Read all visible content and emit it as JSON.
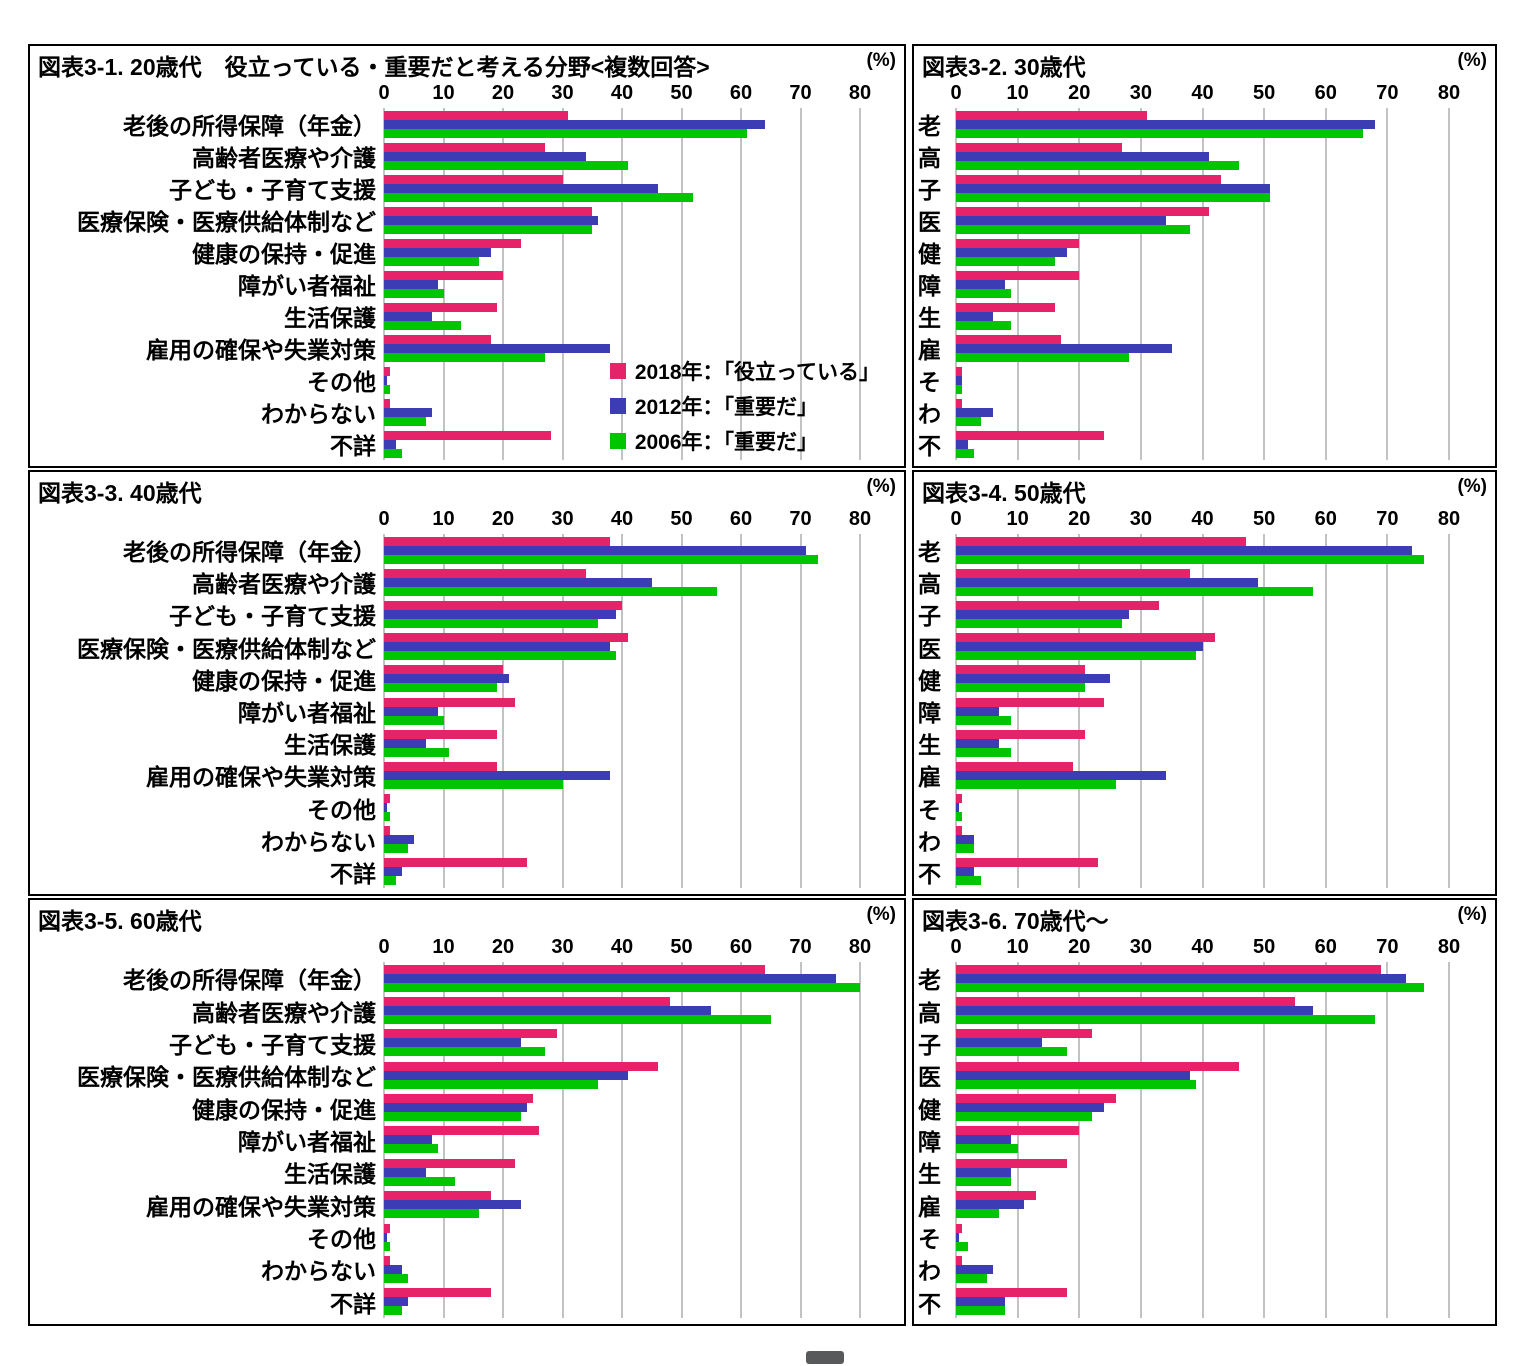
{
  "page": {
    "background": "#ffffff"
  },
  "axis": {
    "ticks": [
      0,
      10,
      20,
      30,
      40,
      50,
      60,
      70,
      80
    ],
    "max": 80,
    "unit_label": "(%)"
  },
  "series_meta": [
    {
      "year": "2018",
      "label": "2018年：「役立っている」",
      "color": "#e62368"
    },
    {
      "year": "2012",
      "label": "2012年：「重要だ」",
      "color": "#3c3cb4"
    },
    {
      "year": "2006",
      "label": "2006年：「重要だ」",
      "color": "#00c500"
    }
  ],
  "gridline_color": "#c3c3c3",
  "categories_full": [
    "老後の所得保障（年金）",
    "高齢者医療や介護",
    "子ども・子育て支援",
    "医療保険・医療供給体制など",
    "健康の保持・促進",
    "障がい者福祉",
    "生活保護",
    "雇用の確保や失業対策",
    "その他",
    "わからない",
    "不詳"
  ],
  "categories_short": [
    "老",
    "高",
    "子",
    "医",
    "健",
    "障",
    "生",
    "雇",
    "そ",
    "わ",
    "不"
  ],
  "chart_data": [
    {
      "type": "bar",
      "orientation": "horizontal",
      "xlim": [
        0,
        80
      ],
      "title": "図表3-1. 20歳代　役立っている・重要だと考える分野<複数回答>",
      "age_group": "20歳代",
      "categories": [
        "老後の所得保障（年金）",
        "高齢者医療や介護",
        "子ども・子育て支援",
        "医療保険・医療供給体制など",
        "健康の保持・促進",
        "障がい者福祉",
        "生活保護",
        "雇用の確保や失業対策",
        "その他",
        "わからない",
        "不詳"
      ],
      "series": [
        {
          "name": "2018年：「役立っている」",
          "values": [
            31,
            27,
            30,
            35,
            23,
            20,
            19,
            18,
            1,
            1,
            28
          ]
        },
        {
          "name": "2012年：「重要だ」",
          "values": [
            64,
            34,
            46,
            36,
            18,
            9,
            8,
            38,
            0.5,
            8,
            2
          ]
        },
        {
          "name": "2006年：「重要だ」",
          "values": [
            61,
            41,
            52,
            35,
            16,
            10,
            13,
            27,
            1,
            7,
            3
          ]
        }
      ]
    },
    {
      "type": "bar",
      "orientation": "horizontal",
      "xlim": [
        0,
        80
      ],
      "title": "図表3-2. 30歳代",
      "age_group": "30歳代",
      "categories": [
        "老",
        "高",
        "子",
        "医",
        "健",
        "障",
        "生",
        "雇",
        "そ",
        "わ",
        "不"
      ],
      "series": [
        {
          "name": "2018年：「役立っている」",
          "values": [
            31,
            27,
            43,
            41,
            20,
            20,
            16,
            17,
            1,
            1,
            24
          ]
        },
        {
          "name": "2012年：「重要だ」",
          "values": [
            68,
            41,
            51,
            34,
            18,
            8,
            6,
            35,
            1,
            6,
            2
          ]
        },
        {
          "name": "2006年：「重要だ」",
          "values": [
            66,
            46,
            51,
            38,
            16,
            9,
            9,
            28,
            1,
            4,
            3
          ]
        }
      ]
    },
    {
      "type": "bar",
      "orientation": "horizontal",
      "xlim": [
        0,
        80
      ],
      "title": "図表3-3. 40歳代",
      "age_group": "40歳代",
      "categories": [
        "老後の所得保障（年金）",
        "高齢者医療や介護",
        "子ども・子育て支援",
        "医療保険・医療供給体制など",
        "健康の保持・促進",
        "障がい者福祉",
        "生活保護",
        "雇用の確保や失業対策",
        "その他",
        "わからない",
        "不詳"
      ],
      "series": [
        {
          "name": "2018年：「役立っている」",
          "values": [
            38,
            34,
            40,
            41,
            20,
            22,
            19,
            19,
            1,
            1,
            24
          ]
        },
        {
          "name": "2012年：「重要だ」",
          "values": [
            71,
            45,
            39,
            38,
            21,
            9,
            7,
            38,
            0.5,
            5,
            3
          ]
        },
        {
          "name": "2006年：「重要だ」",
          "values": [
            73,
            56,
            36,
            39,
            19,
            10,
            11,
            30,
            1,
            4,
            2
          ]
        }
      ]
    },
    {
      "type": "bar",
      "orientation": "horizontal",
      "xlim": [
        0,
        80
      ],
      "title": "図表3-4. 50歳代",
      "age_group": "50歳代",
      "categories": [
        "老",
        "高",
        "子",
        "医",
        "健",
        "障",
        "生",
        "雇",
        "そ",
        "わ",
        "不"
      ],
      "series": [
        {
          "name": "2018年：「役立っている」",
          "values": [
            47,
            38,
            33,
            42,
            21,
            24,
            21,
            19,
            1,
            1,
            23
          ]
        },
        {
          "name": "2012年：「重要だ」",
          "values": [
            74,
            49,
            28,
            40,
            25,
            7,
            7,
            34,
            0.5,
            3,
            3
          ]
        },
        {
          "name": "2006年：「重要だ」",
          "values": [
            76,
            58,
            27,
            39,
            21,
            9,
            9,
            26,
            1,
            3,
            4
          ]
        }
      ]
    },
    {
      "type": "bar",
      "orientation": "horizontal",
      "xlim": [
        0,
        80
      ],
      "title": "図表3-5. 60歳代",
      "age_group": "60歳代",
      "categories": [
        "老後の所得保障（年金）",
        "高齢者医療や介護",
        "子ども・子育て支援",
        "医療保険・医療供給体制など",
        "健康の保持・促進",
        "障がい者福祉",
        "生活保護",
        "雇用の確保や失業対策",
        "その他",
        "わからない",
        "不詳"
      ],
      "series": [
        {
          "name": "2018年：「役立っている」",
          "values": [
            64,
            48,
            29,
            46,
            25,
            26,
            22,
            18,
            1,
            1,
            18
          ]
        },
        {
          "name": "2012年：「重要だ」",
          "values": [
            76,
            55,
            23,
            41,
            24,
            8,
            7,
            23,
            0.5,
            3,
            4
          ]
        },
        {
          "name": "2006年：「重要だ」",
          "values": [
            80,
            65,
            27,
            36,
            23,
            9,
            12,
            16,
            1,
            4,
            3
          ]
        }
      ]
    },
    {
      "type": "bar",
      "orientation": "horizontal",
      "xlim": [
        0,
        80
      ],
      "title": "図表3-6. 70歳代～",
      "age_group": "70歳代～",
      "categories": [
        "老",
        "高",
        "子",
        "医",
        "健",
        "障",
        "生",
        "雇",
        "そ",
        "わ",
        "不"
      ],
      "series": [
        {
          "name": "2018年：「役立っている」",
          "values": [
            69,
            55,
            22,
            46,
            26,
            20,
            18,
            13,
            1,
            1,
            18
          ]
        },
        {
          "name": "2012年：「重要だ」",
          "values": [
            73,
            58,
            14,
            38,
            24,
            9,
            9,
            11,
            0.5,
            6,
            8
          ]
        },
        {
          "name": "2006年：「重要だ」",
          "values": [
            76,
            68,
            18,
            39,
            22,
            10,
            9,
            7,
            2,
            5,
            8
          ]
        }
      ]
    }
  ]
}
